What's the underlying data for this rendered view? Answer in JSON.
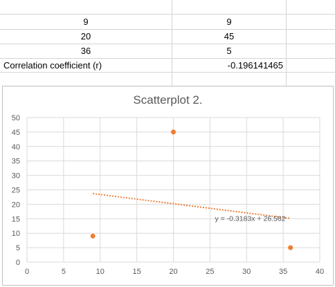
{
  "table": {
    "rows": [
      {
        "a": "9",
        "b": "9"
      },
      {
        "a": "20",
        "b": "45"
      },
      {
        "a": "36",
        "b": "5"
      }
    ],
    "correlation_label": "Correlation coefficient (r)",
    "correlation_value": "-0.196141465"
  },
  "chart_data": {
    "type": "scatter",
    "title": "Scatterplot 2.",
    "xlabel": "",
    "ylabel": "",
    "xlim": [
      0,
      40
    ],
    "ylim": [
      0,
      50
    ],
    "x_ticks": [
      0,
      5,
      10,
      15,
      20,
      25,
      30,
      35,
      40
    ],
    "y_ticks": [
      0,
      5,
      10,
      15,
      20,
      25,
      30,
      35,
      40,
      45,
      50
    ],
    "grid": true,
    "points": [
      {
        "x": 9,
        "y": 9
      },
      {
        "x": 20,
        "y": 45
      },
      {
        "x": 36,
        "y": 5
      }
    ],
    "trendline": {
      "slope": -0.3183,
      "intercept": 26.562,
      "x_range": [
        9,
        36
      ],
      "label": "y = -0.3183x + 26.562"
    },
    "colors": {
      "point": "#ED7D31",
      "trendline": "#ED7D31",
      "grid": "#d9d9d9",
      "axis_text": "#595959"
    }
  }
}
